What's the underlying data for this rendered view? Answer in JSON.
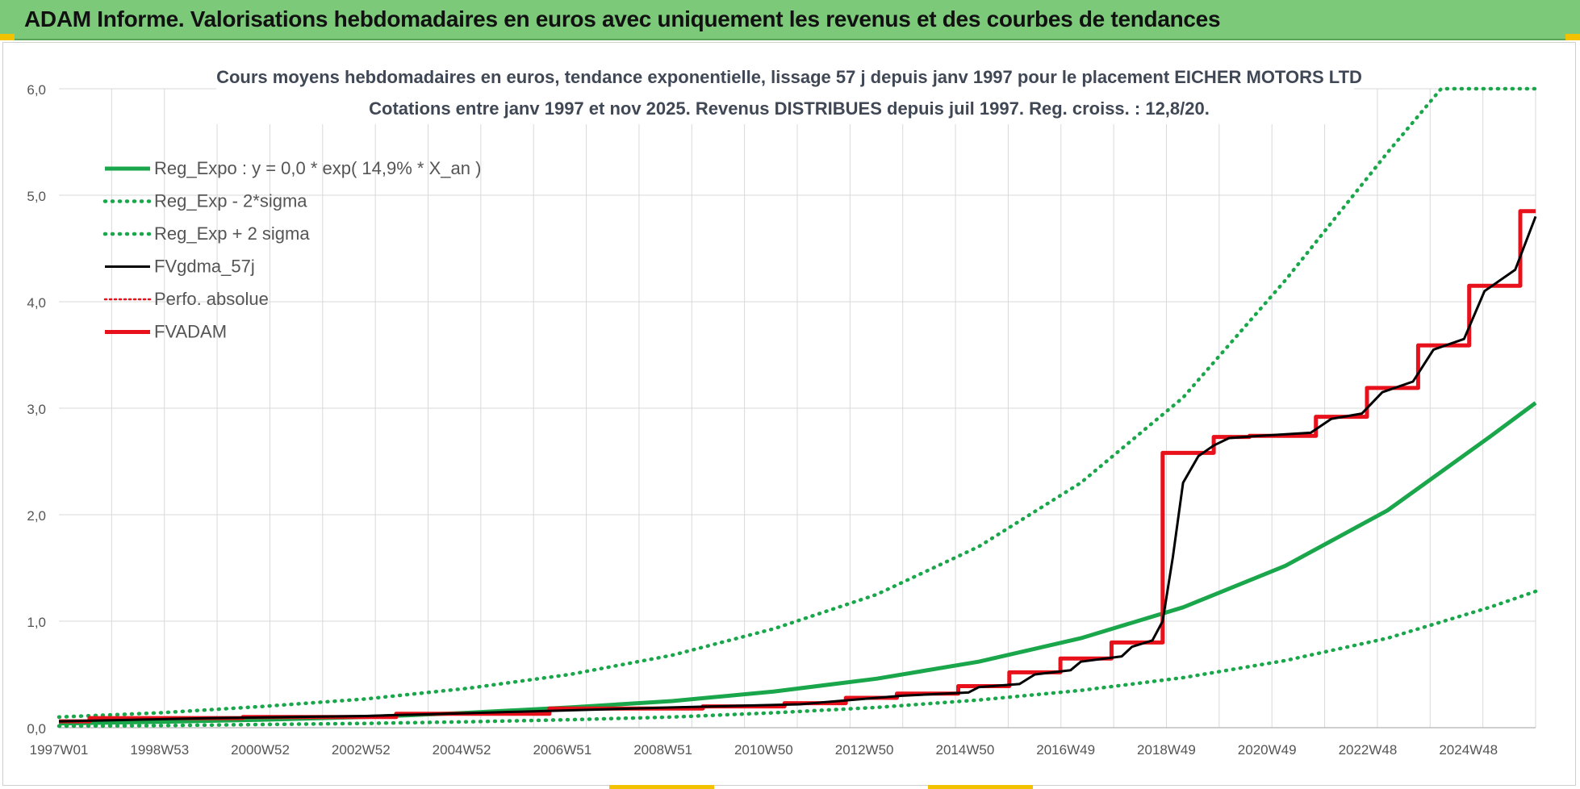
{
  "banner": {
    "title": "ADAM Informe. Valorisations hebdomadaires en euros avec uniquement les revenus et des courbes de tendances"
  },
  "colors": {
    "banner_bg": "#7cc97a",
    "trend_green": "#1aa64a",
    "fv_black": "#000000",
    "adam_red": "#e8101a",
    "grid": "#d9d9d9"
  },
  "chart_data": {
    "type": "line",
    "title_line1": "Cours moyens hebdomadaires en euros, tendance exponentielle, lissage 57 j depuis janv 1997  pour le placement EICHER MOTORS LTD",
    "title_line2": "Cotations entre janv 1997 et nov 2025. Revenus  DISTRIBUES depuis juil 1997. Reg.  croiss. : 12,8/20.",
    "x_tick_labels": [
      "1997W01",
      "1998W53",
      "2000W52",
      "2002W52",
      "2004W52",
      "2006W51",
      "2008W51",
      "2010W50",
      "2012W50",
      "2014W50",
      "2016W49",
      "2018W49",
      "2020W49",
      "2022W48",
      "2024W48"
    ],
    "x_range": [
      1997.0,
      2025.9
    ],
    "y_tick_labels": [
      "0,0",
      "1,0",
      "2,0",
      "3,0",
      "4,0",
      "5,0",
      "6,0"
    ],
    "ylim": [
      0,
      6
    ],
    "grid": true,
    "legend_placement": "top-left",
    "legend": [
      {
        "key": "reg",
        "label": "Reg_Expo : y = 0,0 * exp( 14,9% *  X_an )"
      },
      {
        "key": "low",
        "label": "Reg_Exp - 2*sigma"
      },
      {
        "key": "high",
        "label": "Reg_Exp + 2 sigma"
      },
      {
        "key": "fvg",
        "label": "FVgdma_57j"
      },
      {
        "key": "perf",
        "label": "Perfo. absolue"
      },
      {
        "key": "adam",
        "label": "FVADAM"
      }
    ],
    "series": [
      {
        "key": "reg",
        "name": "Reg_Expo : y = 0,0 * exp( 14,9% *  X_an )",
        "x": [
          1997,
          1999,
          2001,
          2003,
          2005,
          2007,
          2009,
          2011,
          2013,
          2015,
          2017,
          2019,
          2021,
          2023,
          2025,
          2025.9
        ],
        "y": [
          0.04,
          0.055,
          0.075,
          0.1,
          0.14,
          0.19,
          0.25,
          0.34,
          0.46,
          0.62,
          0.84,
          1.13,
          1.52,
          2.04,
          2.73,
          3.05
        ]
      },
      {
        "key": "high",
        "name": "Reg_Exp + 2 sigma",
        "x": [
          1997,
          1999,
          2001,
          2003,
          2005,
          2007,
          2009,
          2011,
          2013,
          2015,
          2017,
          2019,
          2021,
          2023,
          2024.05,
          2025.9
        ],
        "y": [
          0.1,
          0.14,
          0.2,
          0.27,
          0.37,
          0.5,
          0.68,
          0.93,
          1.25,
          1.7,
          2.3,
          3.1,
          4.2,
          5.4,
          6.0,
          6.0
        ]
      },
      {
        "key": "low",
        "name": "Reg_Exp - 2*sigma",
        "x": [
          1997,
          1999,
          2001,
          2003,
          2005,
          2007,
          2009,
          2011,
          2013,
          2015,
          2017,
          2019,
          2021,
          2023,
          2025,
          2025.9
        ],
        "y": [
          0.015,
          0.02,
          0.03,
          0.04,
          0.055,
          0.075,
          0.1,
          0.14,
          0.19,
          0.26,
          0.35,
          0.47,
          0.63,
          0.84,
          1.13,
          1.28
        ]
      },
      {
        "key": "adam",
        "name": "FVADAM",
        "x": [
          1997.0,
          1997.6,
          1997.6,
          2000.6,
          2000.6,
          2003.6,
          2003.6,
          2006.6,
          2006.6,
          2009.6,
          2009.6,
          2011.2,
          2011.2,
          2012.4,
          2012.4,
          2013.4,
          2013.4,
          2014.6,
          2014.6,
          2015.6,
          2015.6,
          2016.6,
          2016.6,
          2017.6,
          2017.6,
          2018.6,
          2018.6,
          2019.6,
          2019.6,
          2020.3,
          2020.3,
          2021.6,
          2021.6,
          2022.6,
          2022.6,
          2023.6,
          2023.6,
          2024.6,
          2024.6,
          2025.6,
          2025.6,
          2025.9
        ],
        "y": [
          0.06,
          0.06,
          0.09,
          0.09,
          0.1,
          0.1,
          0.13,
          0.13,
          0.18,
          0.18,
          0.2,
          0.2,
          0.23,
          0.23,
          0.28,
          0.28,
          0.32,
          0.32,
          0.39,
          0.39,
          0.52,
          0.52,
          0.65,
          0.65,
          0.8,
          0.8,
          2.58,
          2.58,
          2.73,
          2.73,
          2.74,
          2.74,
          2.92,
          2.92,
          3.19,
          3.19,
          3.59,
          3.59,
          4.15,
          4.15,
          4.85,
          4.85
        ]
      },
      {
        "key": "fvg",
        "name": "FVgdma_57j",
        "x": [
          1997.0,
          2000.0,
          2003.0,
          2006.0,
          2009.0,
          2011.5,
          2013.5,
          2014.8,
          2015.0,
          2015.8,
          2016.1,
          2016.8,
          2017.0,
          2017.8,
          2018.0,
          2018.4,
          2018.6,
          2018.8,
          2019.0,
          2019.3,
          2019.6,
          2019.9,
          2020.5,
          2021.5,
          2021.9,
          2022.5,
          2022.9,
          2023.5,
          2023.9,
          2024.5,
          2024.9,
          2025.5,
          2025.9
        ],
        "y": [
          0.06,
          0.09,
          0.11,
          0.15,
          0.19,
          0.22,
          0.3,
          0.33,
          0.38,
          0.41,
          0.5,
          0.54,
          0.62,
          0.67,
          0.76,
          0.82,
          1.0,
          1.6,
          2.3,
          2.55,
          2.65,
          2.72,
          2.74,
          2.77,
          2.9,
          2.95,
          3.15,
          3.25,
          3.55,
          3.65,
          4.1,
          4.3,
          4.8
        ]
      }
    ]
  }
}
